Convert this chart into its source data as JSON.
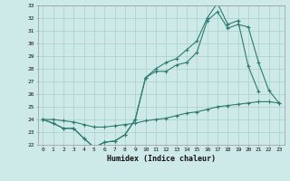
{
  "xlabel": "Humidex (Indice chaleur)",
  "x": [
    0,
    1,
    2,
    3,
    4,
    5,
    6,
    7,
    8,
    9,
    10,
    11,
    12,
    13,
    14,
    15,
    16,
    17,
    18,
    19,
    20,
    21,
    22,
    23
  ],
  "line1": [
    24.0,
    23.7,
    23.3,
    23.3,
    22.5,
    21.8,
    22.2,
    22.3,
    22.8,
    24.0,
    27.3,
    28.0,
    28.5,
    28.8,
    29.5,
    30.2,
    32.0,
    33.2,
    31.5,
    31.8,
    28.2,
    26.2,
    null,
    null
  ],
  "line2": [
    24.0,
    23.7,
    23.3,
    23.3,
    22.5,
    21.8,
    22.2,
    22.3,
    22.8,
    24.0,
    27.3,
    27.8,
    27.8,
    28.3,
    28.5,
    29.3,
    31.8,
    32.5,
    31.2,
    31.5,
    31.3,
    28.5,
    26.3,
    25.3
  ],
  "line3": [
    24.0,
    24.0,
    23.9,
    23.8,
    23.6,
    23.4,
    23.4,
    23.5,
    23.6,
    23.7,
    23.9,
    24.0,
    24.1,
    24.3,
    24.5,
    24.6,
    24.8,
    25.0,
    25.1,
    25.2,
    25.3,
    25.4,
    25.4,
    25.3
  ],
  "bg_color": "#ceeae8",
  "grid_color": "#aed4d0",
  "line_color": "#2d7b70",
  "ylim": [
    22,
    33
  ],
  "yticks": [
    22,
    23,
    24,
    25,
    26,
    27,
    28,
    29,
    30,
    31,
    32,
    33
  ],
  "xticks": [
    0,
    1,
    2,
    3,
    4,
    5,
    6,
    7,
    8,
    9,
    10,
    11,
    12,
    13,
    14,
    15,
    16,
    17,
    18,
    19,
    20,
    21,
    22,
    23
  ]
}
